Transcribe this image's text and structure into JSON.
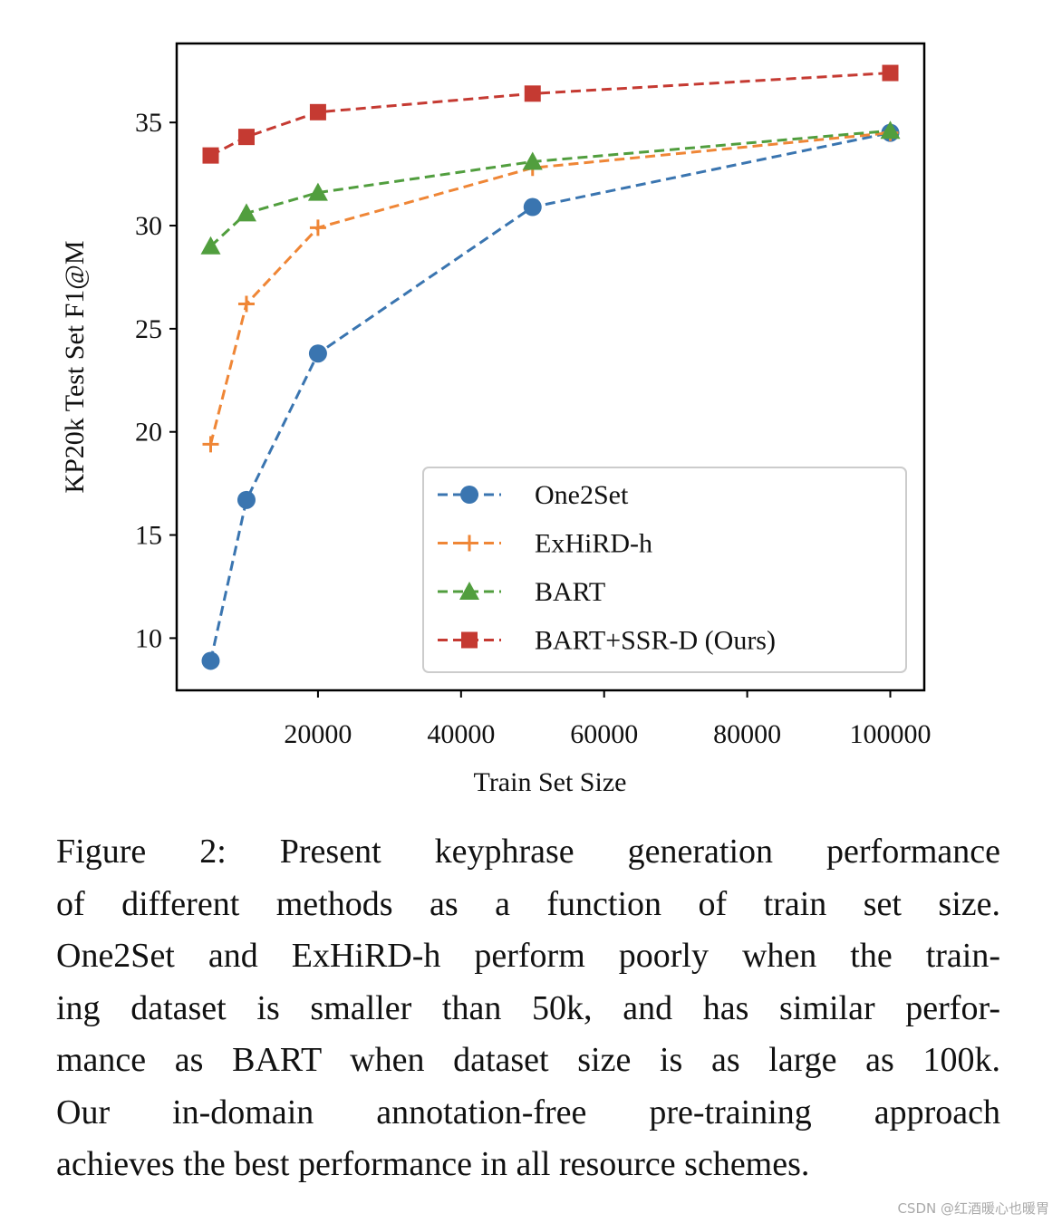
{
  "chart_data": {
    "type": "line",
    "y_label": "KP20k Test Set F1@M",
    "x_label": "Train Set Size",
    "x": [
      5000,
      10000,
      20000,
      50000,
      100000
    ],
    "series": [
      {
        "name": "One2Set",
        "color": "#3a75b0",
        "marker": "circle",
        "values": [
          8.9,
          16.7,
          23.8,
          30.9,
          34.5
        ]
      },
      {
        "name": "ExHiRD-h",
        "color": "#ef8636",
        "marker": "plus",
        "values": [
          19.4,
          26.2,
          29.9,
          32.8,
          34.5
        ]
      },
      {
        "name": "BART",
        "color": "#519e3e",
        "marker": "triangle",
        "values": [
          29.0,
          30.6,
          31.6,
          33.1,
          34.6
        ]
      },
      {
        "name": "BART+SSR-D (Ours)",
        "color": "#c53a32",
        "marker": "square",
        "values": [
          33.4,
          34.3,
          35.5,
          36.4,
          37.4
        ]
      }
    ],
    "xlim": [
      250,
      104750
    ],
    "xticks": [
      20000,
      40000,
      60000,
      80000,
      100000
    ],
    "ylim": [
      7.47,
      38.83
    ],
    "yticks": [
      10,
      15,
      20,
      25,
      30,
      35
    ],
    "legend": "lower right",
    "grid": false
  },
  "caption_lines": [
    "Figure 2:  Present keyphrase generation performance",
    "of different methods as a function of train set size.",
    "One2Set and ExHiRD-h perform poorly when the train-",
    "ing dataset is smaller than 50k, and has similar perfor-",
    "mance as BART when dataset size is as large as 100k.",
    "Our in-domain annotation-free pre-training approach",
    "achieves the best performance in all resource schemes."
  ],
  "watermark": "CSDN @红酒暖心也暖胃"
}
